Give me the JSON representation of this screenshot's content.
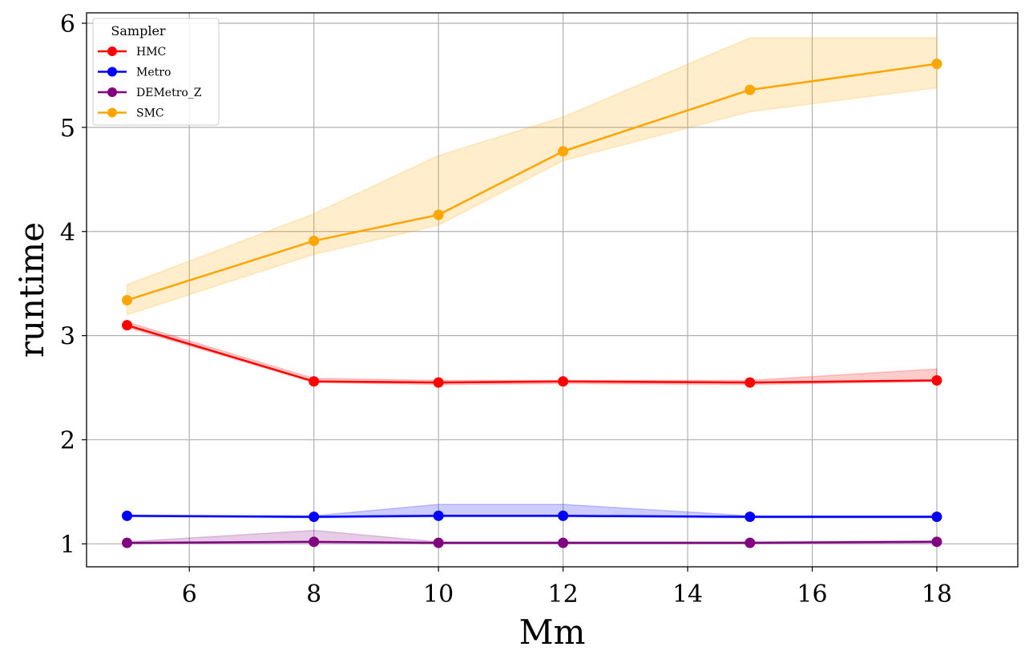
{
  "chart_data": {
    "type": "line",
    "xlabel": "Mm",
    "ylabel": "runtime",
    "xlim": [
      4.35,
      19.3
    ],
    "ylim": [
      0.78,
      6.1
    ],
    "xticks": [
      6,
      8,
      10,
      12,
      14,
      16,
      18
    ],
    "yticks": [
      1,
      2,
      3,
      4,
      5,
      6
    ],
    "grid": true,
    "legend": {
      "title": "Sampler",
      "placement": "top-left"
    },
    "x": [
      5,
      8,
      10,
      12,
      15,
      18
    ],
    "series": [
      {
        "name": "HMC",
        "color": "#ff0000",
        "values": [
          3.1,
          2.56,
          2.55,
          2.56,
          2.55,
          2.57
        ],
        "lower": [
          3.08,
          2.55,
          2.53,
          2.54,
          2.53,
          2.56
        ],
        "upper": [
          3.13,
          2.59,
          2.57,
          2.57,
          2.57,
          2.68
        ]
      },
      {
        "name": "Metro",
        "color": "#0000ff",
        "values": [
          1.27,
          1.26,
          1.27,
          1.27,
          1.26,
          1.26
        ],
        "lower": [
          1.26,
          1.25,
          1.26,
          1.26,
          1.25,
          1.25
        ],
        "upper": [
          1.27,
          1.27,
          1.38,
          1.38,
          1.27,
          1.27
        ]
      },
      {
        "name": "DEMetro_Z",
        "color": "#800080",
        "values": [
          1.01,
          1.02,
          1.01,
          1.01,
          1.01,
          1.02
        ],
        "lower": [
          1.01,
          1.01,
          1.01,
          1.01,
          1.01,
          1.01
        ],
        "upper": [
          1.02,
          1.13,
          1.02,
          1.02,
          1.02,
          1.03
        ]
      },
      {
        "name": "SMC",
        "color": "#ffa500",
        "values": [
          3.34,
          3.91,
          4.16,
          4.77,
          5.36,
          5.61
        ],
        "lower": [
          3.2,
          3.78,
          4.06,
          4.68,
          5.15,
          5.38
        ],
        "upper": [
          3.49,
          4.17,
          4.73,
          5.1,
          5.86,
          5.86
        ]
      }
    ]
  }
}
